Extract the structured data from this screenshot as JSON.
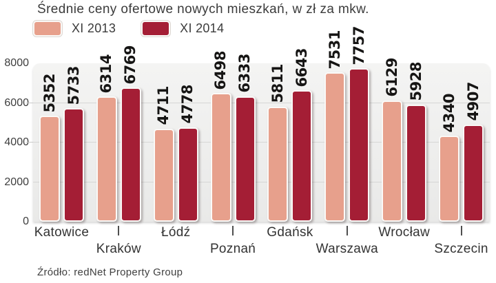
{
  "title": "Średnie ceny ofertowe nowych mieszkań, w zł za mkw.",
  "source": "Źródło: redNet Property Group",
  "colors": {
    "series_2013": "#e7a08c",
    "series_2014": "#a41e35",
    "plot_background_top": "#f4f4f3",
    "plot_background_bottom": "#e9e9e8",
    "gridline": "#d6d6d5",
    "text": "#3b3b3b",
    "value_label": "#161514"
  },
  "legend": [
    {
      "label": "XI 2013",
      "color": "#e7a08c"
    },
    {
      "label": "XI 2014",
      "color": "#a41e35"
    }
  ],
  "chart_data": {
    "type": "bar",
    "title": "Średnie ceny ofertowe nowych mieszkań, w zł za mkw.",
    "xlabel": "",
    "ylabel": "",
    "categories": [
      "Katowice",
      "Kraków",
      "Łódź",
      "Poznań",
      "Gdańsk",
      "Warszawa",
      "Wrocław",
      "Szczecin"
    ],
    "series": [
      {
        "name": "XI 2013",
        "color": "#e7a08c",
        "values": [
          5352,
          6314,
          4711,
          6498,
          5811,
          7531,
          6129,
          4340
        ]
      },
      {
        "name": "XI 2014",
        "color": "#a41e35",
        "values": [
          5733,
          6769,
          4778,
          6333,
          6643,
          7757,
          5928,
          4907
        ]
      }
    ],
    "ylim": [
      0,
      8000
    ],
    "y_ticks": [
      0,
      2000,
      4000,
      6000,
      8000
    ],
    "gridline_values": [
      2000,
      4000,
      6000
    ],
    "grid": true,
    "legend_position": "top-left",
    "value_labels": "rotated-90-above-bars",
    "source": "Źródło: redNet Property Group"
  }
}
